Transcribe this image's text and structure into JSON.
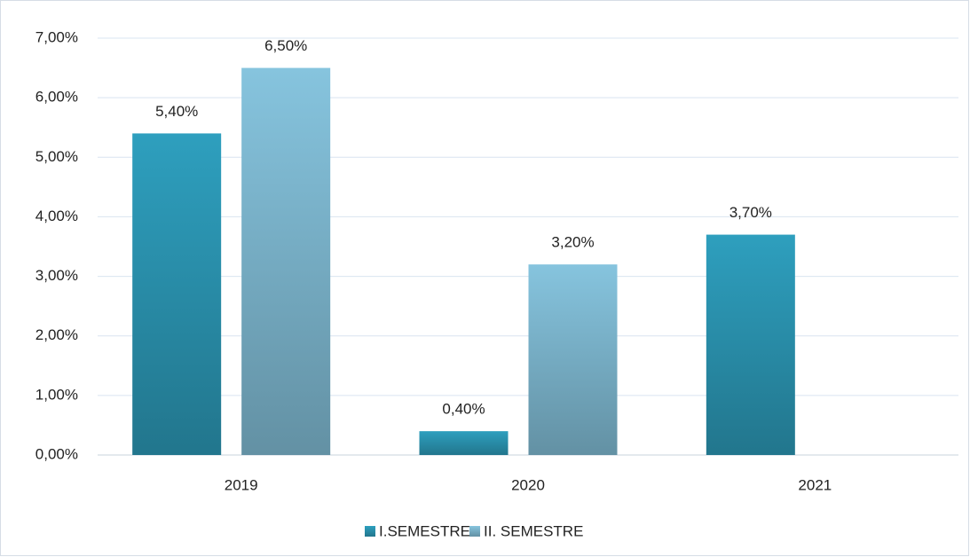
{
  "chart_data": {
    "type": "bar",
    "categories": [
      "2019",
      "2020",
      "2021"
    ],
    "series": [
      {
        "name": "I.SEMESTRE",
        "color": "#2e9fbe",
        "values": [
          5.4,
          0.4,
          3.7
        ],
        "value_labels": [
          "5,40%",
          "0,40%",
          "3,70%"
        ]
      },
      {
        "name": "II. SEMESTRE",
        "color": "#86c4de",
        "values": [
          6.5,
          3.2,
          null
        ],
        "value_labels": [
          "6,50%",
          "3,20%",
          null
        ]
      }
    ],
    "ylim": [
      0,
      7
    ],
    "yticks": [
      {
        "value": 0,
        "label": "0,00%"
      },
      {
        "value": 1,
        "label": "1,00%"
      },
      {
        "value": 2,
        "label": "2,00%"
      },
      {
        "value": 3,
        "label": "3,00%"
      },
      {
        "value": 4,
        "label": "4,00%"
      },
      {
        "value": 5,
        "label": "5,00%"
      },
      {
        "value": 6,
        "label": "6,00%"
      },
      {
        "value": 7,
        "label": "7,00%"
      }
    ],
    "grid": true,
    "legend": "bottom"
  }
}
